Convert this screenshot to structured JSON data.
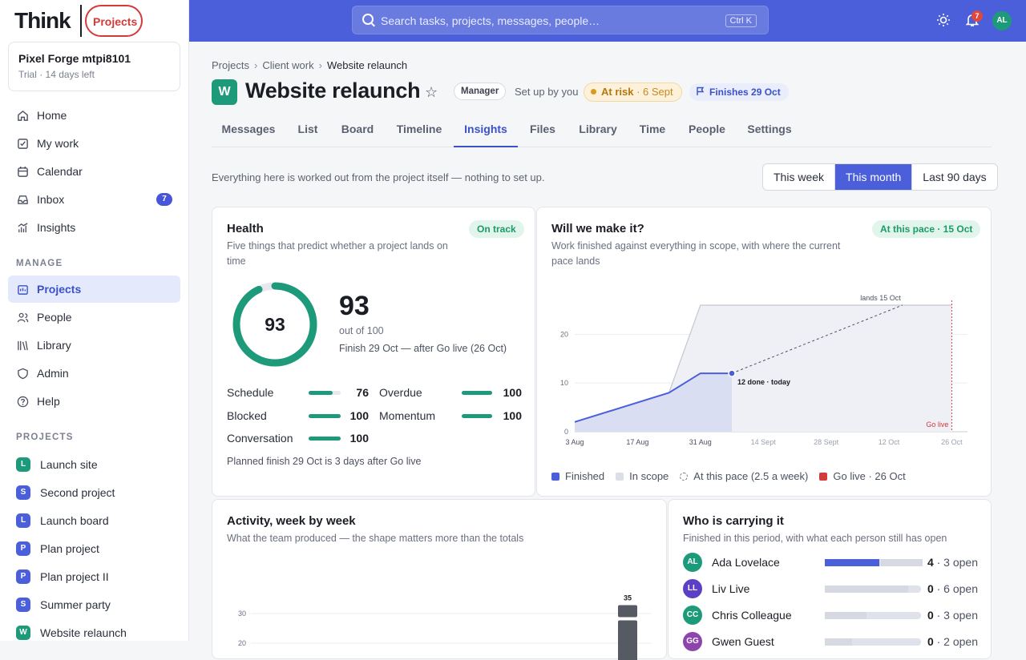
{
  "logo": {
    "think": "Think",
    "projects": "Projects"
  },
  "workspace": {
    "name": "Pixel Forge mtpi8101",
    "sub": "Trial · 14 days left"
  },
  "nav": [
    {
      "label": "Home",
      "icon": "home-icon"
    },
    {
      "label": "My work",
      "icon": "checkbox-icon"
    },
    {
      "label": "Calendar",
      "icon": "calendar-icon"
    },
    {
      "label": "Inbox",
      "icon": "inbox-icon",
      "badge": "7"
    },
    {
      "label": "Insights",
      "icon": "chart-icon"
    }
  ],
  "manage_label": "MANAGE",
  "manage": [
    {
      "label": "Projects",
      "icon": "projects-icon"
    },
    {
      "label": "People",
      "icon": "people-icon"
    },
    {
      "label": "Library",
      "icon": "library-icon"
    },
    {
      "label": "Admin",
      "icon": "shield-icon"
    },
    {
      "label": "Help",
      "icon": "help-icon"
    }
  ],
  "projects_label": "PROJECTS",
  "projects": [
    {
      "letter": "L",
      "label": "Launch site",
      "color": "#1d9a7a"
    },
    {
      "letter": "S",
      "label": "Second project",
      "color": "#4a5fd9"
    },
    {
      "letter": "L",
      "label": "Launch board",
      "color": "#4a5fd9"
    },
    {
      "letter": "P",
      "label": "Plan project",
      "color": "#4a5fd9"
    },
    {
      "letter": "P",
      "label": "Plan project II",
      "color": "#4a5fd9"
    },
    {
      "letter": "S",
      "label": "Summer party",
      "color": "#4a5fd9"
    },
    {
      "letter": "W",
      "label": "Website relaunch",
      "color": "#1d9a7a"
    }
  ],
  "search": {
    "placeholder": "Search tasks, projects, messages, people…",
    "shortcut": "Ctrl K"
  },
  "topbar": {
    "notif_count": "7",
    "avatar": "AL"
  },
  "breadcrumbs": [
    "Projects",
    "Client work",
    "Website relaunch"
  ],
  "project": {
    "letter": "W",
    "title": "Website relaunch",
    "role": "Manager",
    "setup": "Set up by you",
    "status": "At risk",
    "status_date": "· 6 Sept",
    "finishes": "Finishes 29 Oct"
  },
  "tabs": [
    "Messages",
    "List",
    "Board",
    "Timeline",
    "Insights",
    "Files",
    "Library",
    "Time",
    "People",
    "Settings"
  ],
  "intro": "Everything here is worked out from the project itself — nothing to set up.",
  "range": [
    "This week",
    "This month",
    "Last 90 days"
  ],
  "health": {
    "title": "Health",
    "sub": "Five things that predict whether a project lands on time",
    "badge": "On track",
    "score": "93",
    "score_value": 93,
    "out_of": "out of 100",
    "finish": "Finish 29 Oct — after Go live (26 Oct)",
    "metrics": [
      {
        "name": "Schedule",
        "value": "76",
        "pct": 76
      },
      {
        "name": "Overdue",
        "value": "100",
        "pct": 100
      },
      {
        "name": "Blocked",
        "value": "100",
        "pct": 100
      },
      {
        "name": "Momentum",
        "value": "100",
        "pct": 100
      },
      {
        "name": "Conversation",
        "value": "100",
        "pct": 100
      }
    ],
    "footer": "Planned finish 29 Oct is 3 days after Go live"
  },
  "forecast": {
    "title": "Will we make it?",
    "sub": "Work finished against everything in scope, with where the current pace lands",
    "badge": "At this pace · 15 Oct",
    "legend": [
      "Finished",
      "In scope",
      "At this pace (2.5 a week)",
      "Go live · 26 Oct"
    ],
    "colors": {
      "finished": "#4a5fd9",
      "scope": "#dcdfe8",
      "golive": "#d33a3a"
    }
  },
  "chart_data": [
    {
      "type": "area",
      "x_ticks": [
        "3 Aug",
        "17 Aug",
        "31 Aug",
        "14 Sept",
        "28 Sept",
        "12 Oct",
        "26 Oct"
      ],
      "y_ticks": [
        "0",
        "10",
        "20"
      ],
      "ylim": [
        0,
        26
      ],
      "series": [
        {
          "name": "Finished",
          "points": [
            [
              "3 Aug",
              2
            ],
            [
              "24 Aug",
              8
            ],
            [
              "31 Aug",
              12
            ],
            [
              "7 Sept",
              12
            ]
          ]
        },
        {
          "name": "In scope",
          "points": [
            [
              "3 Aug",
              0
            ],
            [
              "24 Aug",
              8
            ],
            [
              "31 Aug",
              26
            ],
            [
              "26 Oct",
              26
            ]
          ]
        },
        {
          "name": "At this pace (2.5 a week)",
          "points": [
            [
              "7 Sept",
              12
            ],
            [
              "15 Oct",
              26
            ]
          ]
        }
      ],
      "annotations": [
        "12 done · today",
        "lands 15 Oct",
        "Go live"
      ]
    },
    {
      "type": "bar",
      "title": "Activity, week by week",
      "y_ticks": [
        "20",
        "30"
      ],
      "values": [
        35
      ],
      "data_labels": [
        "35"
      ]
    }
  ],
  "activity": {
    "title": "Activity, week by week",
    "sub": "What the team produced — the shape matters more than the totals"
  },
  "carrying": {
    "title": "Who is carrying it",
    "sub": "Finished in this period, with what each person still has open",
    "people": [
      {
        "initials": "AL",
        "name": "Ada Lovelace",
        "done": "4",
        "open": "· 3 open",
        "color": "#1d9a7a",
        "done_frac": 0.57,
        "open_frac": 0.43
      },
      {
        "initials": "LL",
        "name": "Liv Live",
        "done": "0",
        "open": "· 6 open",
        "color": "#5b3fc4",
        "done_frac": 0,
        "open_frac": 0.87
      },
      {
        "initials": "CC",
        "name": "Chris Colleague",
        "done": "0",
        "open": "· 3 open",
        "color": "#1d9a7a",
        "done_frac": 0,
        "open_frac": 0.43
      },
      {
        "initials": "GG",
        "name": "Gwen Guest",
        "done": "0",
        "open": "· 2 open",
        "color": "#8e44ad",
        "done_frac": 0,
        "open_frac": 0.28
      }
    ]
  }
}
